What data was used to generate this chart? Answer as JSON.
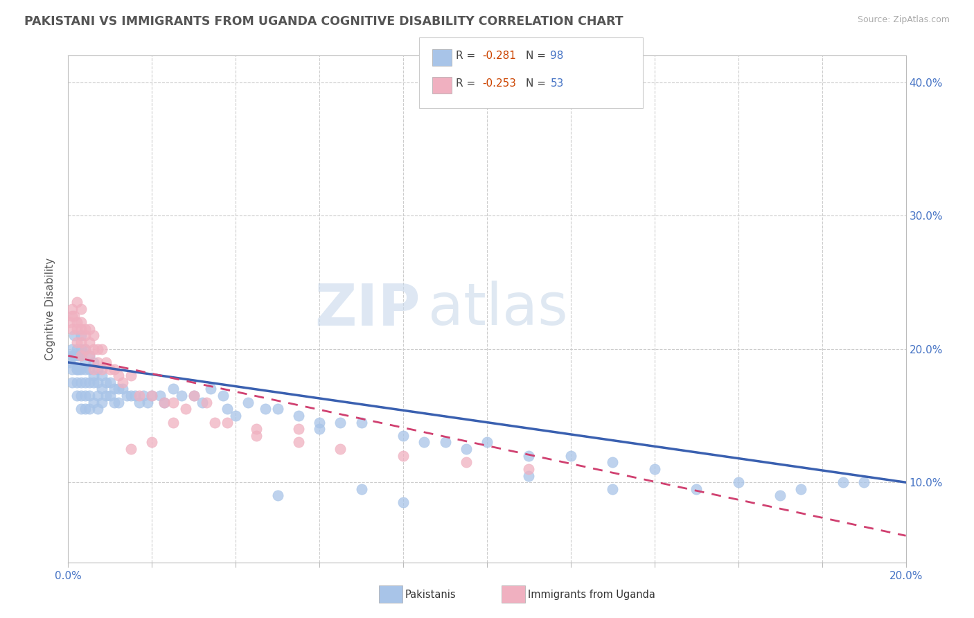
{
  "title": "PAKISTANI VS IMMIGRANTS FROM UGANDA COGNITIVE DISABILITY CORRELATION CHART",
  "source": "Source: ZipAtlas.com",
  "ylabel": "Cognitive Disability",
  "yticks": [
    "10.0%",
    "20.0%",
    "30.0%",
    "40.0%"
  ],
  "ytick_vals": [
    0.1,
    0.2,
    0.3,
    0.4
  ],
  "xlim": [
    0.0,
    0.2
  ],
  "ylim": [
    0.04,
    0.42
  ],
  "blue_color": "#a8c4e8",
  "pink_color": "#f0b0c0",
  "blue_line_color": "#3a60b0",
  "pink_line_color": "#d04070",
  "watermark_zip": "ZIP",
  "watermark_atlas": "atlas",
  "pakistanis_x": [
    0.0005,
    0.001,
    0.001,
    0.001,
    0.001,
    0.0015,
    0.0015,
    0.002,
    0.002,
    0.002,
    0.002,
    0.002,
    0.002,
    0.0025,
    0.0025,
    0.003,
    0.003,
    0.003,
    0.003,
    0.003,
    0.003,
    0.003,
    0.004,
    0.004,
    0.004,
    0.004,
    0.004,
    0.004,
    0.005,
    0.005,
    0.005,
    0.005,
    0.005,
    0.006,
    0.006,
    0.006,
    0.006,
    0.007,
    0.007,
    0.007,
    0.007,
    0.008,
    0.008,
    0.008,
    0.009,
    0.009,
    0.01,
    0.01,
    0.011,
    0.011,
    0.012,
    0.012,
    0.013,
    0.014,
    0.015,
    0.016,
    0.017,
    0.018,
    0.019,
    0.02,
    0.022,
    0.023,
    0.025,
    0.027,
    0.03,
    0.032,
    0.034,
    0.037,
    0.04,
    0.043,
    0.047,
    0.05,
    0.055,
    0.06,
    0.065,
    0.07,
    0.08,
    0.09,
    0.1,
    0.11,
    0.12,
    0.13,
    0.14,
    0.16,
    0.175,
    0.19,
    0.038,
    0.06,
    0.085,
    0.095,
    0.05,
    0.07,
    0.08,
    0.11,
    0.13,
    0.15,
    0.17,
    0.185
  ],
  "pakistanis_y": [
    0.19,
    0.2,
    0.185,
    0.195,
    0.175,
    0.21,
    0.195,
    0.185,
    0.2,
    0.195,
    0.185,
    0.175,
    0.165,
    0.195,
    0.185,
    0.21,
    0.2,
    0.195,
    0.185,
    0.175,
    0.165,
    0.155,
    0.2,
    0.19,
    0.185,
    0.175,
    0.165,
    0.155,
    0.195,
    0.185,
    0.175,
    0.165,
    0.155,
    0.19,
    0.18,
    0.175,
    0.16,
    0.185,
    0.175,
    0.165,
    0.155,
    0.18,
    0.17,
    0.16,
    0.175,
    0.165,
    0.175,
    0.165,
    0.17,
    0.16,
    0.17,
    0.16,
    0.17,
    0.165,
    0.165,
    0.165,
    0.16,
    0.165,
    0.16,
    0.165,
    0.165,
    0.16,
    0.17,
    0.165,
    0.165,
    0.16,
    0.17,
    0.165,
    0.15,
    0.16,
    0.155,
    0.155,
    0.15,
    0.145,
    0.145,
    0.145,
    0.135,
    0.13,
    0.13,
    0.12,
    0.12,
    0.115,
    0.11,
    0.1,
    0.095,
    0.1,
    0.155,
    0.14,
    0.13,
    0.125,
    0.09,
    0.095,
    0.085,
    0.105,
    0.095,
    0.095,
    0.09,
    0.1
  ],
  "ugandans_x": [
    0.0005,
    0.001,
    0.001,
    0.001,
    0.0015,
    0.002,
    0.002,
    0.002,
    0.002,
    0.003,
    0.003,
    0.003,
    0.003,
    0.003,
    0.004,
    0.004,
    0.004,
    0.005,
    0.005,
    0.005,
    0.006,
    0.006,
    0.006,
    0.007,
    0.007,
    0.008,
    0.008,
    0.009,
    0.01,
    0.011,
    0.012,
    0.013,
    0.015,
    0.017,
    0.02,
    0.023,
    0.025,
    0.028,
    0.033,
    0.038,
    0.045,
    0.055,
    0.065,
    0.08,
    0.095,
    0.11,
    0.015,
    0.02,
    0.025,
    0.03,
    0.035,
    0.045,
    0.055
  ],
  "ugandans_y": [
    0.22,
    0.23,
    0.225,
    0.215,
    0.225,
    0.22,
    0.235,
    0.215,
    0.205,
    0.23,
    0.22,
    0.215,
    0.205,
    0.195,
    0.215,
    0.21,
    0.2,
    0.215,
    0.205,
    0.195,
    0.21,
    0.2,
    0.185,
    0.2,
    0.19,
    0.2,
    0.185,
    0.19,
    0.185,
    0.185,
    0.18,
    0.175,
    0.18,
    0.165,
    0.165,
    0.16,
    0.16,
    0.155,
    0.16,
    0.145,
    0.14,
    0.13,
    0.125,
    0.12,
    0.115,
    0.11,
    0.125,
    0.13,
    0.145,
    0.165,
    0.145,
    0.135,
    0.14
  ],
  "blue_trend_x0": 0.0,
  "blue_trend_x1": 0.2,
  "blue_trend_y0": 0.19,
  "blue_trend_y1": 0.1,
  "pink_trend_x0": 0.0,
  "pink_trend_x1": 0.2,
  "pink_trend_y0": 0.195,
  "pink_trend_y1": 0.06
}
